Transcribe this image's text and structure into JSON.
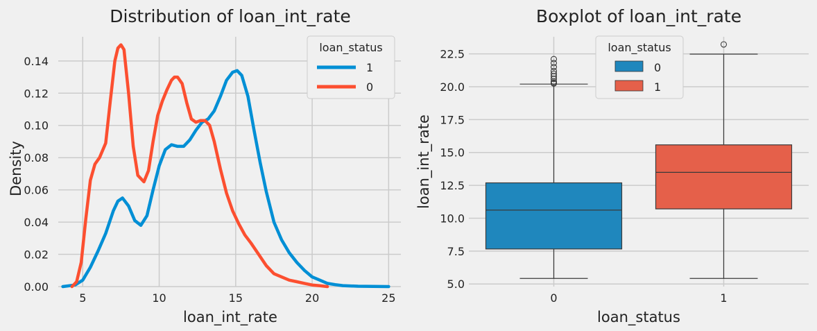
{
  "colors": {
    "blue": "#008fd5",
    "red": "#fc4f30",
    "box_blue": "#1f87bd",
    "box_red": "#e5604a",
    "grid": "#cbcbcb",
    "background": "#f0f0f0"
  },
  "chart_data": [
    {
      "type": "line",
      "title": "Distribution of loan_int_rate",
      "xlabel": "loan_int_rate",
      "ylabel": "Density",
      "xlim": [
        3.4,
        25.8
      ],
      "ylim": [
        0,
        0.155
      ],
      "xticks": [
        5,
        10,
        15,
        20,
        25
      ],
      "yticks": [
        0.0,
        0.02,
        0.04,
        0.06,
        0.08,
        0.1,
        0.12,
        0.14
      ],
      "ytick_labels": [
        "0.00",
        "0.02",
        "0.04",
        "0.06",
        "0.08",
        "0.10",
        "0.12",
        "0.14"
      ],
      "grid": true,
      "legend": {
        "title": "loan_status",
        "position": "top-right",
        "entries": [
          "1",
          "0"
        ]
      },
      "series": [
        {
          "name": "1",
          "color": "#008fd5",
          "x": [
            3.7,
            4.5,
            5.0,
            5.5,
            6.0,
            6.5,
            7.0,
            7.3,
            7.6,
            8.0,
            8.4,
            8.8,
            9.2,
            9.6,
            10.0,
            10.4,
            10.8,
            11.2,
            11.6,
            12.0,
            12.4,
            12.8,
            13.2,
            13.6,
            14.0,
            14.4,
            14.8,
            15.1,
            15.4,
            15.8,
            16.2,
            16.6,
            17.0,
            17.5,
            18.0,
            18.5,
            19.0,
            19.5,
            20.0,
            20.5,
            21.0,
            21.5,
            22.0,
            23.0,
            24.0,
            25.0
          ],
          "y": [
            0.0,
            0.001,
            0.004,
            0.012,
            0.022,
            0.033,
            0.047,
            0.053,
            0.055,
            0.05,
            0.041,
            0.038,
            0.044,
            0.06,
            0.075,
            0.085,
            0.088,
            0.087,
            0.087,
            0.091,
            0.097,
            0.102,
            0.104,
            0.109,
            0.118,
            0.128,
            0.133,
            0.134,
            0.131,
            0.118,
            0.097,
            0.077,
            0.059,
            0.04,
            0.029,
            0.021,
            0.015,
            0.01,
            0.006,
            0.004,
            0.002,
            0.0012,
            0.0006,
            0.0002,
            0.0001,
            0.0
          ]
        },
        {
          "name": "0",
          "color": "#fc4f30",
          "x": [
            4.3,
            4.6,
            4.9,
            5.2,
            5.5,
            5.8,
            6.1,
            6.5,
            6.8,
            7.1,
            7.3,
            7.5,
            7.7,
            8.0,
            8.3,
            8.6,
            9.0,
            9.3,
            9.6,
            9.9,
            10.2,
            10.5,
            10.8,
            11.0,
            11.2,
            11.5,
            11.8,
            12.1,
            12.4,
            12.7,
            13.0,
            13.3,
            13.6,
            14.0,
            14.4,
            14.8,
            15.2,
            15.6,
            16.0,
            16.5,
            17.0,
            17.5,
            18.0,
            18.5,
            19.0,
            19.5,
            20.0,
            20.5,
            21.0
          ],
          "y": [
            0.0,
            0.003,
            0.015,
            0.042,
            0.066,
            0.076,
            0.08,
            0.089,
            0.115,
            0.14,
            0.148,
            0.15,
            0.147,
            0.12,
            0.087,
            0.069,
            0.065,
            0.072,
            0.09,
            0.106,
            0.115,
            0.122,
            0.128,
            0.13,
            0.13,
            0.126,
            0.114,
            0.104,
            0.102,
            0.103,
            0.103,
            0.1,
            0.09,
            0.073,
            0.058,
            0.047,
            0.039,
            0.032,
            0.027,
            0.02,
            0.013,
            0.008,
            0.006,
            0.004,
            0.003,
            0.002,
            0.001,
            0.0005,
            0.0
          ]
        }
      ]
    },
    {
      "type": "box",
      "title": "Boxplot of loan_int_rate",
      "xlabel": "loan_status",
      "ylabel": "loan_int_rate",
      "categories": [
        "0",
        "1"
      ],
      "ylim": [
        4.8,
        23.8
      ],
      "yticks": [
        5.0,
        7.5,
        10.0,
        12.5,
        15.0,
        17.5,
        20.0,
        22.5
      ],
      "ytick_labels": [
        "5.0",
        "7.5",
        "10.0",
        "12.5",
        "15.0",
        "17.5",
        "20.0",
        "22.5"
      ],
      "grid": true,
      "legend": {
        "title": "loan_status",
        "position": "top-center",
        "entries": [
          "0",
          "1"
        ]
      },
      "boxes": [
        {
          "category": "0",
          "color": "#1f87bd",
          "whisker_low": 5.42,
          "q1": 7.66,
          "median": 10.62,
          "q3": 12.69,
          "whisker_high": 20.2,
          "outliers": [
            20.25,
            20.3,
            20.4,
            20.6,
            20.8,
            20.99,
            21.2,
            21.5,
            21.8,
            22.1
          ]
        },
        {
          "category": "1",
          "color": "#e5604a",
          "whisker_low": 5.42,
          "q1": 10.71,
          "median": 13.49,
          "q3": 15.58,
          "whisker_high": 22.48,
          "outliers": [
            23.22
          ]
        }
      ]
    }
  ]
}
